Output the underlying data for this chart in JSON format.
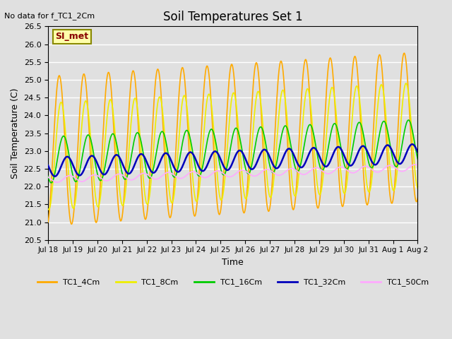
{
  "title": "Soil Temperatures Set 1",
  "subtitle": "No data for f_TC1_2Cm",
  "xlabel": "Time",
  "ylabel": "Soil Temperature (C)",
  "ylim": [
    20.5,
    26.5
  ],
  "annotation": "SI_met",
  "bg_color": "#e0e0e0",
  "plot_bg_color": "#e0e0e0",
  "grid_color": "#ffffff",
  "series_colors": {
    "TC1_4Cm": "#ffaa00",
    "TC1_8Cm": "#eeee00",
    "TC1_16Cm": "#00cc00",
    "TC1_32Cm": "#0000bb",
    "TC1_50Cm": "#ffaaff"
  },
  "xtick_labels": [
    "Jul 18",
    "Jul 19",
    "Jul 20",
    "Jul 21",
    "Jul 22",
    "Jul 23",
    "Jul 24",
    "Jul 25",
    "Jul 26",
    "Jul 27",
    "Jul 28",
    "Jul 29",
    "Jul 30",
    "Jul 31",
    "Aug 1",
    "Aug 2"
  ],
  "n_days": 15,
  "points_per_day": 48
}
